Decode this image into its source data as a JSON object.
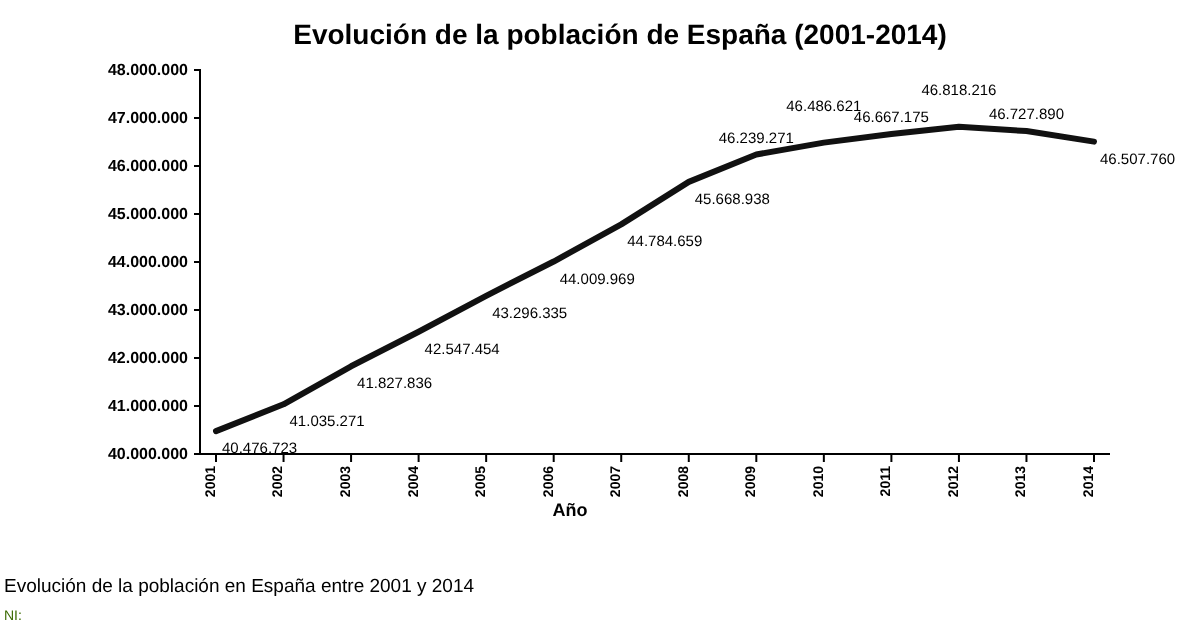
{
  "chart_data": {
    "type": "line",
    "title": "Evolución de la población de España (2001-2014)",
    "xlabel": "Año",
    "categories": [
      "2001",
      "2002",
      "2003",
      "2004",
      "2005",
      "2006",
      "2007",
      "2008",
      "2009",
      "2010",
      "2011",
      "2012",
      "2013",
      "2014"
    ],
    "series": [
      {
        "color": "#111111",
        "values": [
          40476723,
          41035271,
          41827836,
          42547454,
          43296335,
          44009969,
          44784659,
          45668938,
          46239271,
          46486621,
          46667175,
          46818216,
          46727890,
          46507760
        ]
      }
    ],
    "value_labels": [
      "40.476.723",
      "41.035.271",
      "41.827.836",
      "42.547.454",
      "43.296.335",
      "44.009.969",
      "44.784.659",
      "45.668.938",
      "46.239.271",
      "46.486.621",
      "46.667.175",
      "46.818.216",
      "46.727.890",
      "46.507.760"
    ],
    "ylim": [
      40000000,
      48000000
    ],
    "yticks": [
      {
        "value": 40000000,
        "label": "40.000.000"
      },
      {
        "value": 41000000,
        "label": "41.000.000"
      },
      {
        "value": 42000000,
        "label": "42.000.000"
      },
      {
        "value": 43000000,
        "label": "43.000.000"
      },
      {
        "value": 44000000,
        "label": "44.000.000"
      },
      {
        "value": 45000000,
        "label": "45.000.000"
      },
      {
        "value": 46000000,
        "label": "46.000.000"
      },
      {
        "value": 47000000,
        "label": "47.000.000"
      },
      {
        "value": 48000000,
        "label": "48.000.000"
      }
    ],
    "line_style": "solid",
    "annotations": [
      "Evolución de la población en España entre 2001 y 2014",
      "NI:"
    ]
  }
}
